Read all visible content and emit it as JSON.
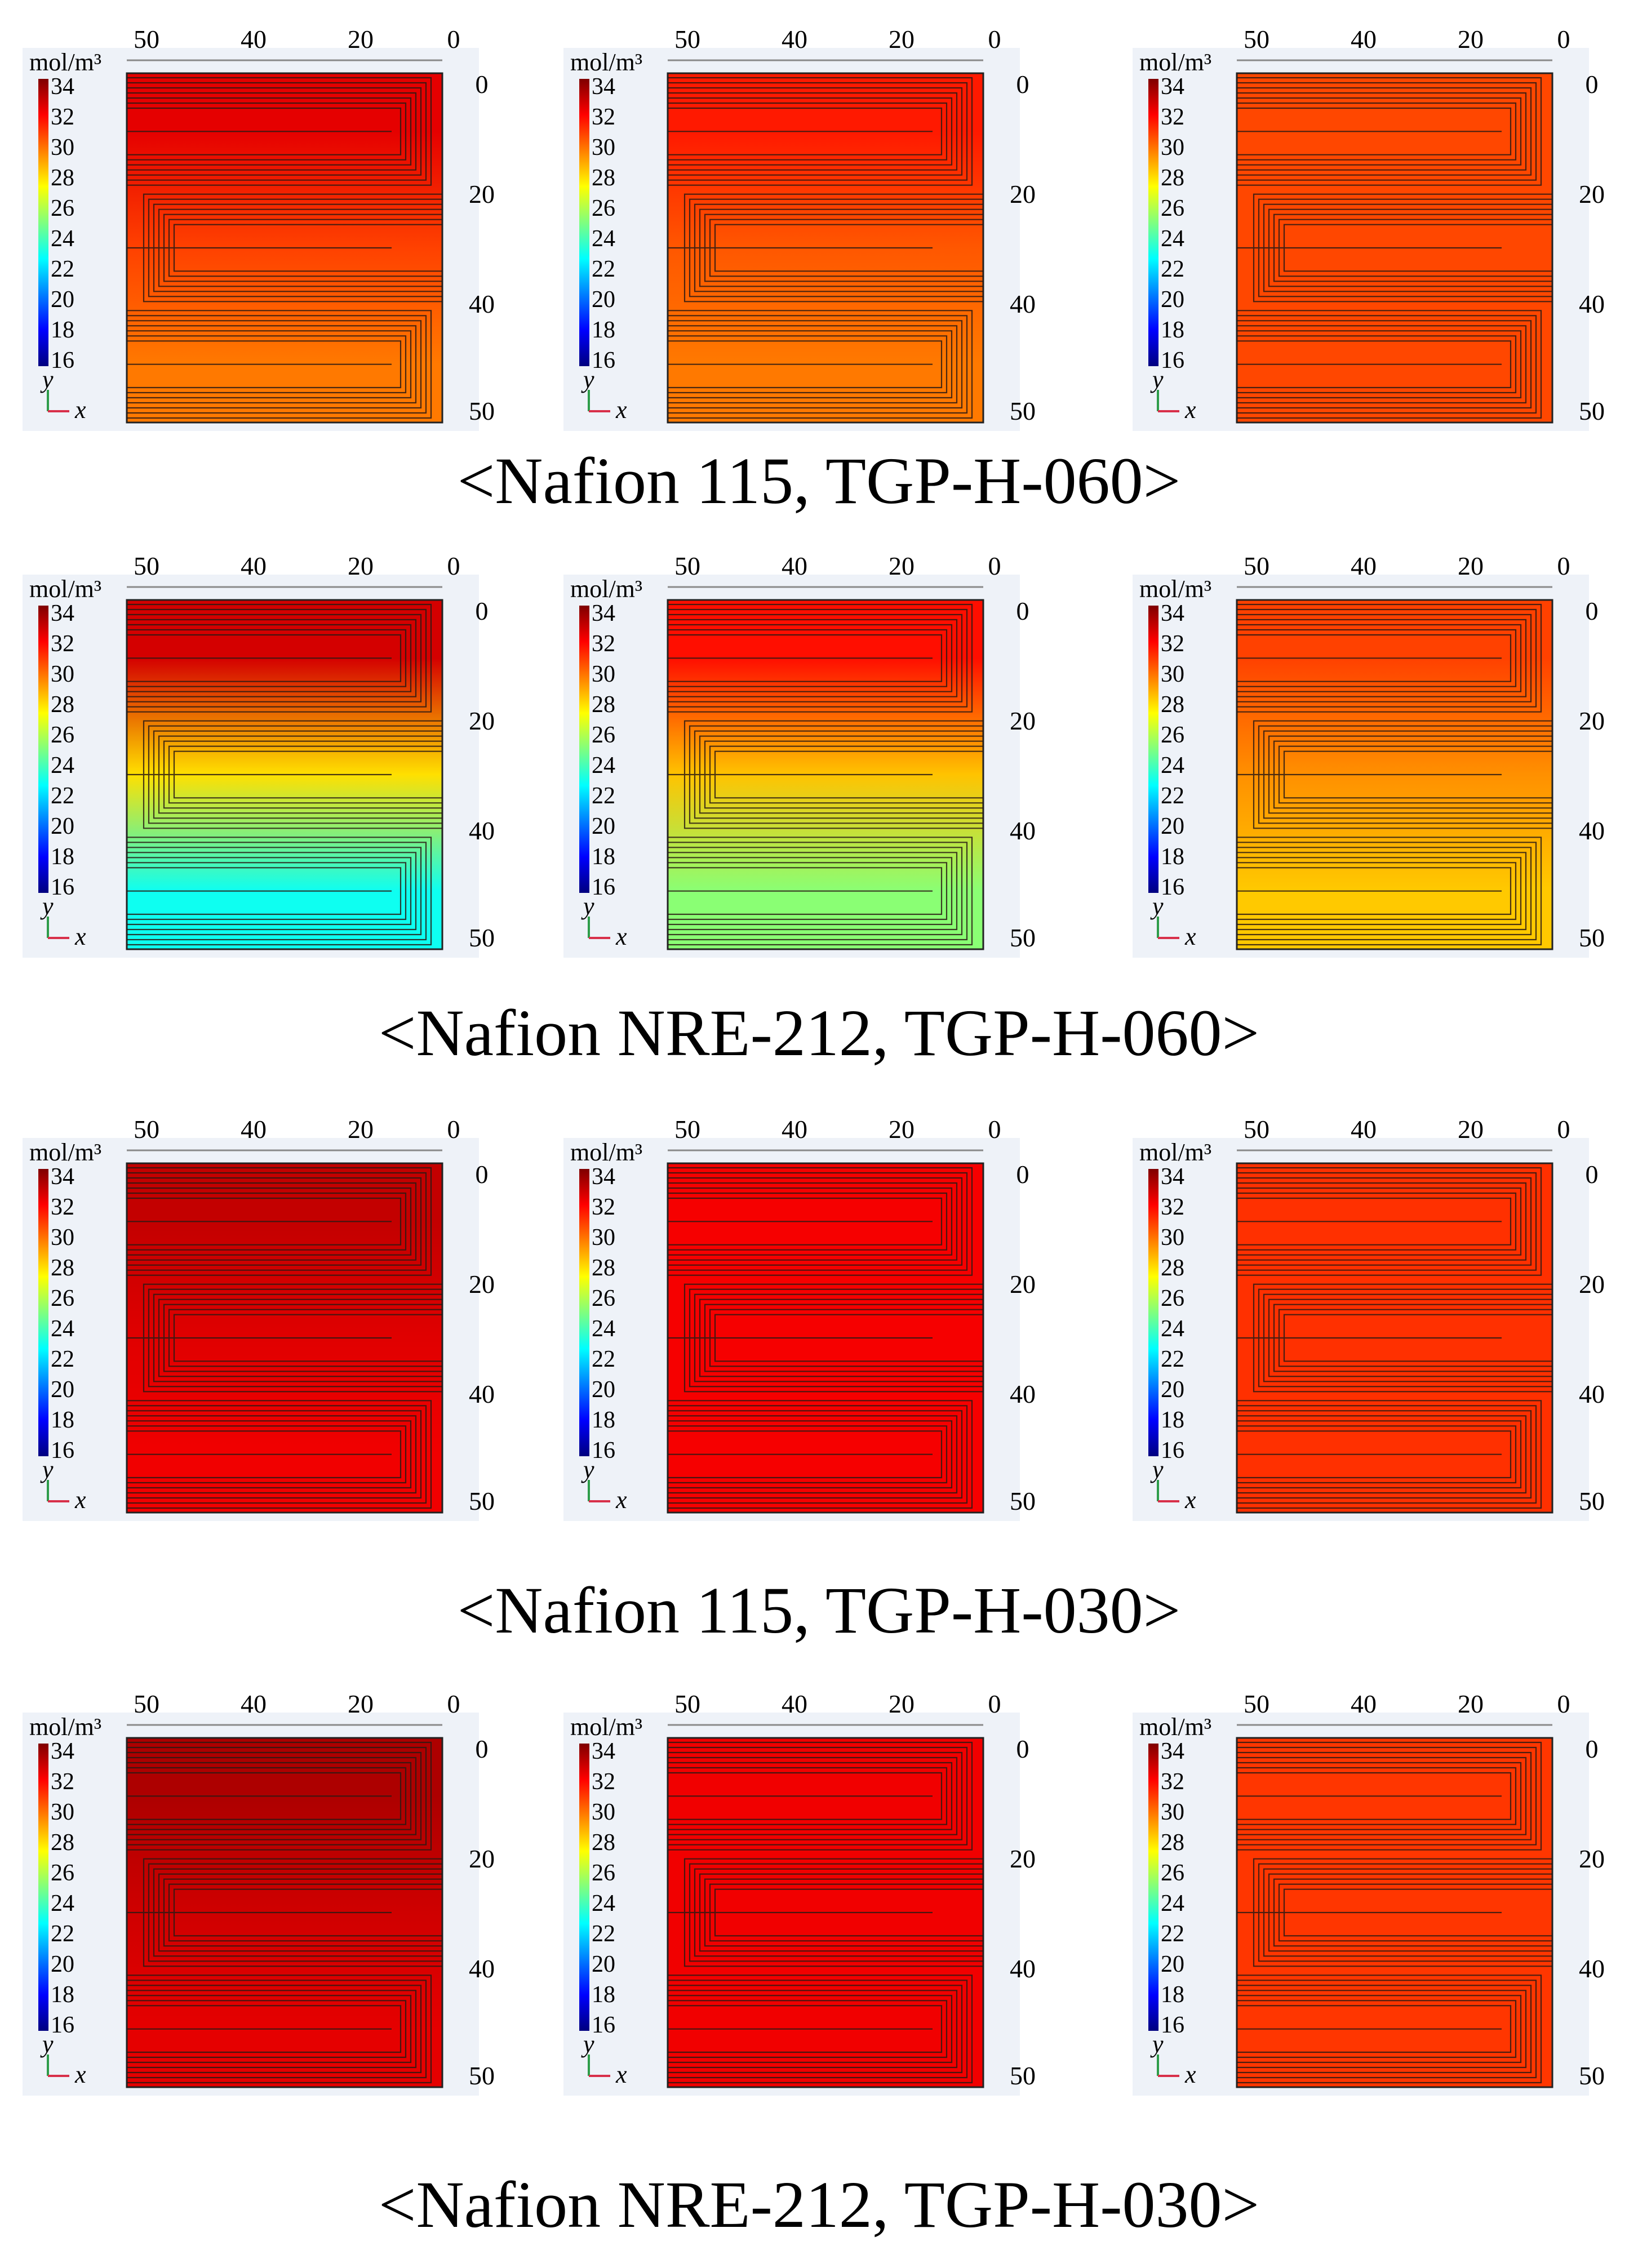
{
  "figure": {
    "unit_label": "mol/m³",
    "axis_x_label": "x",
    "axis_y_label": "y",
    "top_axis_ticks": [
      "50",
      "40",
      "20",
      "0"
    ],
    "right_axis_ticks": [
      "0",
      "20",
      "40",
      "50"
    ],
    "colorbar": {
      "ticks": [
        "34",
        "32",
        "30",
        "28",
        "26",
        "24",
        "22",
        "20",
        "18",
        "16"
      ],
      "range": [
        16,
        34
      ],
      "colors": [
        "#00007f",
        "#0000ff",
        "#007fff",
        "#00ffff",
        "#7fff7f",
        "#ffff00",
        "#ff7f00",
        "#ff0000",
        "#7f0000"
      ]
    }
  },
  "rows": [
    {
      "caption": "<Nafion 115, TGP-H-060>",
      "panels": [
        {
          "name": "n115-h060-a",
          "bands": [
            32.2,
            30.6,
            29.6
          ]
        },
        {
          "name": "n115-h060-b",
          "bands": [
            31.3,
            30.2,
            29.6
          ]
        },
        {
          "name": "n115-h060-c",
          "bands": [
            30.5,
            30.5,
            30.5
          ]
        }
      ]
    },
    {
      "caption": "<Nafion NRE-212, TGP-H-060>",
      "panels": [
        {
          "name": "nre212-h060-a",
          "bands": [
            32.5,
            27.8,
            23.0
          ]
        },
        {
          "name": "nre212-h060-b",
          "bands": [
            31.5,
            28.3,
            25.2
          ]
        },
        {
          "name": "nre212-h060-c",
          "bands": [
            30.6,
            29.2,
            28.2
          ]
        }
      ]
    },
    {
      "caption": "<Nafion 115, TGP-H-030>",
      "panels": [
        {
          "name": "n115-h030-a",
          "bands": [
            32.8,
            32.3,
            32.0
          ]
        },
        {
          "name": "n115-h030-b",
          "bands": [
            31.9,
            31.9,
            31.9
          ]
        },
        {
          "name": "n115-h030-c",
          "bands": [
            30.9,
            30.9,
            30.9
          ]
        }
      ]
    },
    {
      "caption": "<Nafion NRE-212, TGP-H-030>",
      "panels": [
        {
          "name": "nre212-h030-a",
          "bands": [
            33.2,
            32.6,
            32.2
          ]
        },
        {
          "name": "nre212-h030-b",
          "bands": [
            32.0,
            32.0,
            32.0
          ]
        },
        {
          "name": "nre212-h030-c",
          "bands": [
            30.8,
            30.8,
            30.8
          ]
        }
      ]
    }
  ]
}
